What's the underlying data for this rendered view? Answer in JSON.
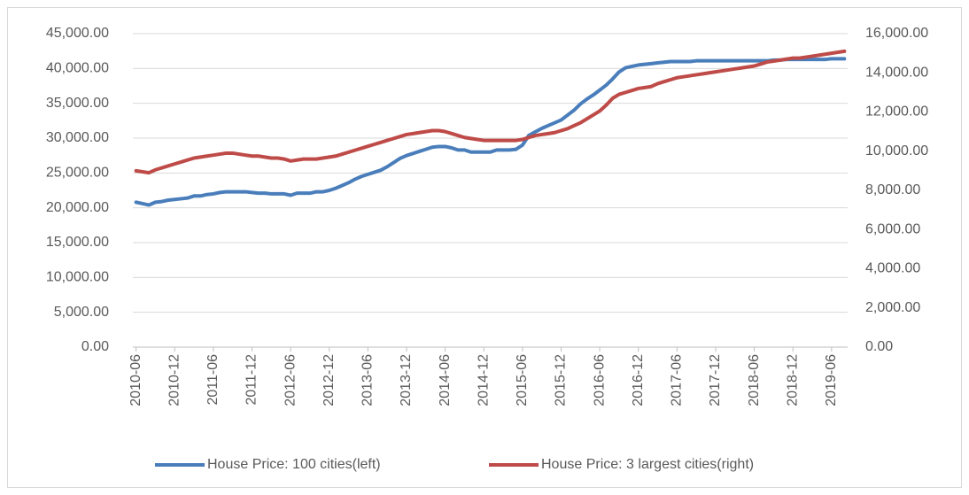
{
  "chart_data": {
    "type": "line",
    "categories": [
      "2010-06",
      null,
      null,
      null,
      null,
      null,
      "2010-12",
      null,
      null,
      null,
      null,
      null,
      "2011-06",
      null,
      null,
      null,
      null,
      null,
      "2011-12",
      null,
      null,
      null,
      null,
      null,
      "2012-06",
      null,
      null,
      null,
      null,
      null,
      "2012-12",
      null,
      null,
      null,
      null,
      null,
      "2013-06",
      null,
      null,
      null,
      null,
      null,
      "2013-12",
      null,
      null,
      null,
      null,
      null,
      "2014-06",
      null,
      null,
      null,
      null,
      null,
      "2014-12",
      null,
      null,
      null,
      null,
      null,
      "2015-06",
      null,
      null,
      null,
      null,
      null,
      "2015-12",
      null,
      null,
      null,
      null,
      null,
      "2016-06",
      null,
      null,
      null,
      null,
      null,
      "2016-12",
      null,
      null,
      null,
      null,
      null,
      "2017-06",
      null,
      null,
      null,
      null,
      null,
      "2017-12",
      null,
      null,
      null,
      null,
      null,
      "2018-06",
      null,
      null,
      null,
      null,
      null,
      "2018-12",
      null,
      null,
      null,
      null,
      null,
      "2019-06",
      null,
      null
    ],
    "series": [
      {
        "name": "House Price: 100 cities(left)",
        "color": "#4a7ebb",
        "axis": "y",
        "values": [
          20800,
          20600,
          20400,
          20800,
          20900,
          21100,
          21200,
          21300,
          21400,
          21700,
          21700,
          21900,
          22000,
          22200,
          22300,
          22300,
          22300,
          22300,
          22200,
          22100,
          22100,
          22000,
          22000,
          22000,
          21800,
          22100,
          22100,
          22100,
          22300,
          22300,
          22500,
          22800,
          23200,
          23600,
          24100,
          24500,
          24800,
          25100,
          25400,
          25900,
          26500,
          27100,
          27500,
          27800,
          28100,
          28400,
          28700,
          28800,
          28800,
          28600,
          28300,
          28300,
          28000,
          28000,
          28000,
          28000,
          28300,
          28300,
          28300,
          28400,
          29000,
          30400,
          30900,
          31400,
          31800,
          32200,
          32600,
          33300,
          34000,
          34900,
          35600,
          36200,
          36900,
          37600,
          38500,
          39500,
          40100,
          40300,
          40500,
          40600,
          40700,
          40800,
          40900,
          41000,
          41000,
          41000,
          41000,
          41100,
          41100,
          41100,
          41100,
          41100,
          41100,
          41100,
          41100,
          41100,
          41100,
          41100,
          41100,
          41200,
          41200,
          41300,
          41300,
          41300,
          41300,
          41300,
          41300,
          41300,
          41400,
          41400,
          41400
        ]
      },
      {
        "name": "House Price: 3 largest cities(right)",
        "color": "#be4b48",
        "axis": "y2",
        "values": [
          9000,
          8950,
          8900,
          9050,
          9150,
          9250,
          9350,
          9450,
          9550,
          9650,
          9700,
          9750,
          9800,
          9850,
          9900,
          9900,
          9850,
          9800,
          9750,
          9750,
          9700,
          9650,
          9650,
          9600,
          9500,
          9550,
          9600,
          9600,
          9600,
          9650,
          9700,
          9750,
          9850,
          9950,
          10050,
          10150,
          10250,
          10350,
          10450,
          10550,
          10650,
          10750,
          10850,
          10900,
          10950,
          11000,
          11050,
          11050,
          11000,
          10900,
          10800,
          10700,
          10650,
          10600,
          10550,
          10550,
          10550,
          10550,
          10550,
          10550,
          10600,
          10700,
          10800,
          10850,
          10900,
          10950,
          11050,
          11150,
          11300,
          11450,
          11650,
          11850,
          12050,
          12350,
          12700,
          12900,
          13000,
          13100,
          13200,
          13250,
          13300,
          13450,
          13550,
          13650,
          13750,
          13800,
          13850,
          13900,
          13950,
          14000,
          14050,
          14100,
          14150,
          14200,
          14250,
          14300,
          14350,
          14450,
          14550,
          14600,
          14650,
          14700,
          14750,
          14750,
          14800,
          14850,
          14900,
          14950,
          15000,
          15050,
          15100
        ]
      }
    ],
    "ylim": [
      0,
      45000
    ],
    "yticks": [
      {
        "value": 0,
        "label": "0.00"
      },
      {
        "value": 5000,
        "label": "5,000.00"
      },
      {
        "value": 10000,
        "label": "10,000.00"
      },
      {
        "value": 15000,
        "label": "15,000.00"
      },
      {
        "value": 20000,
        "label": "20,000.00"
      },
      {
        "value": 25000,
        "label": "25,000.00"
      },
      {
        "value": 30000,
        "label": "30,000.00"
      },
      {
        "value": 35000,
        "label": "35,000.00"
      },
      {
        "value": 40000,
        "label": "40,000.00"
      },
      {
        "value": 45000,
        "label": "45,000.00"
      }
    ],
    "y2lim": [
      0,
      16000
    ],
    "y2ticks": [
      {
        "value": 0,
        "label": "0.00"
      },
      {
        "value": 2000,
        "label": "2,000.00"
      },
      {
        "value": 4000,
        "label": "4,000.00"
      },
      {
        "value": 6000,
        "label": "6,000.00"
      },
      {
        "value": 8000,
        "label": "8,000.00"
      },
      {
        "value": 10000,
        "label": "10,000.00"
      },
      {
        "value": 12000,
        "label": "12,000.00"
      },
      {
        "value": 14000,
        "label": "14,000.00"
      },
      {
        "value": 16000,
        "label": "16,000.00"
      }
    ],
    "grid": true,
    "legend": "bottom"
  }
}
